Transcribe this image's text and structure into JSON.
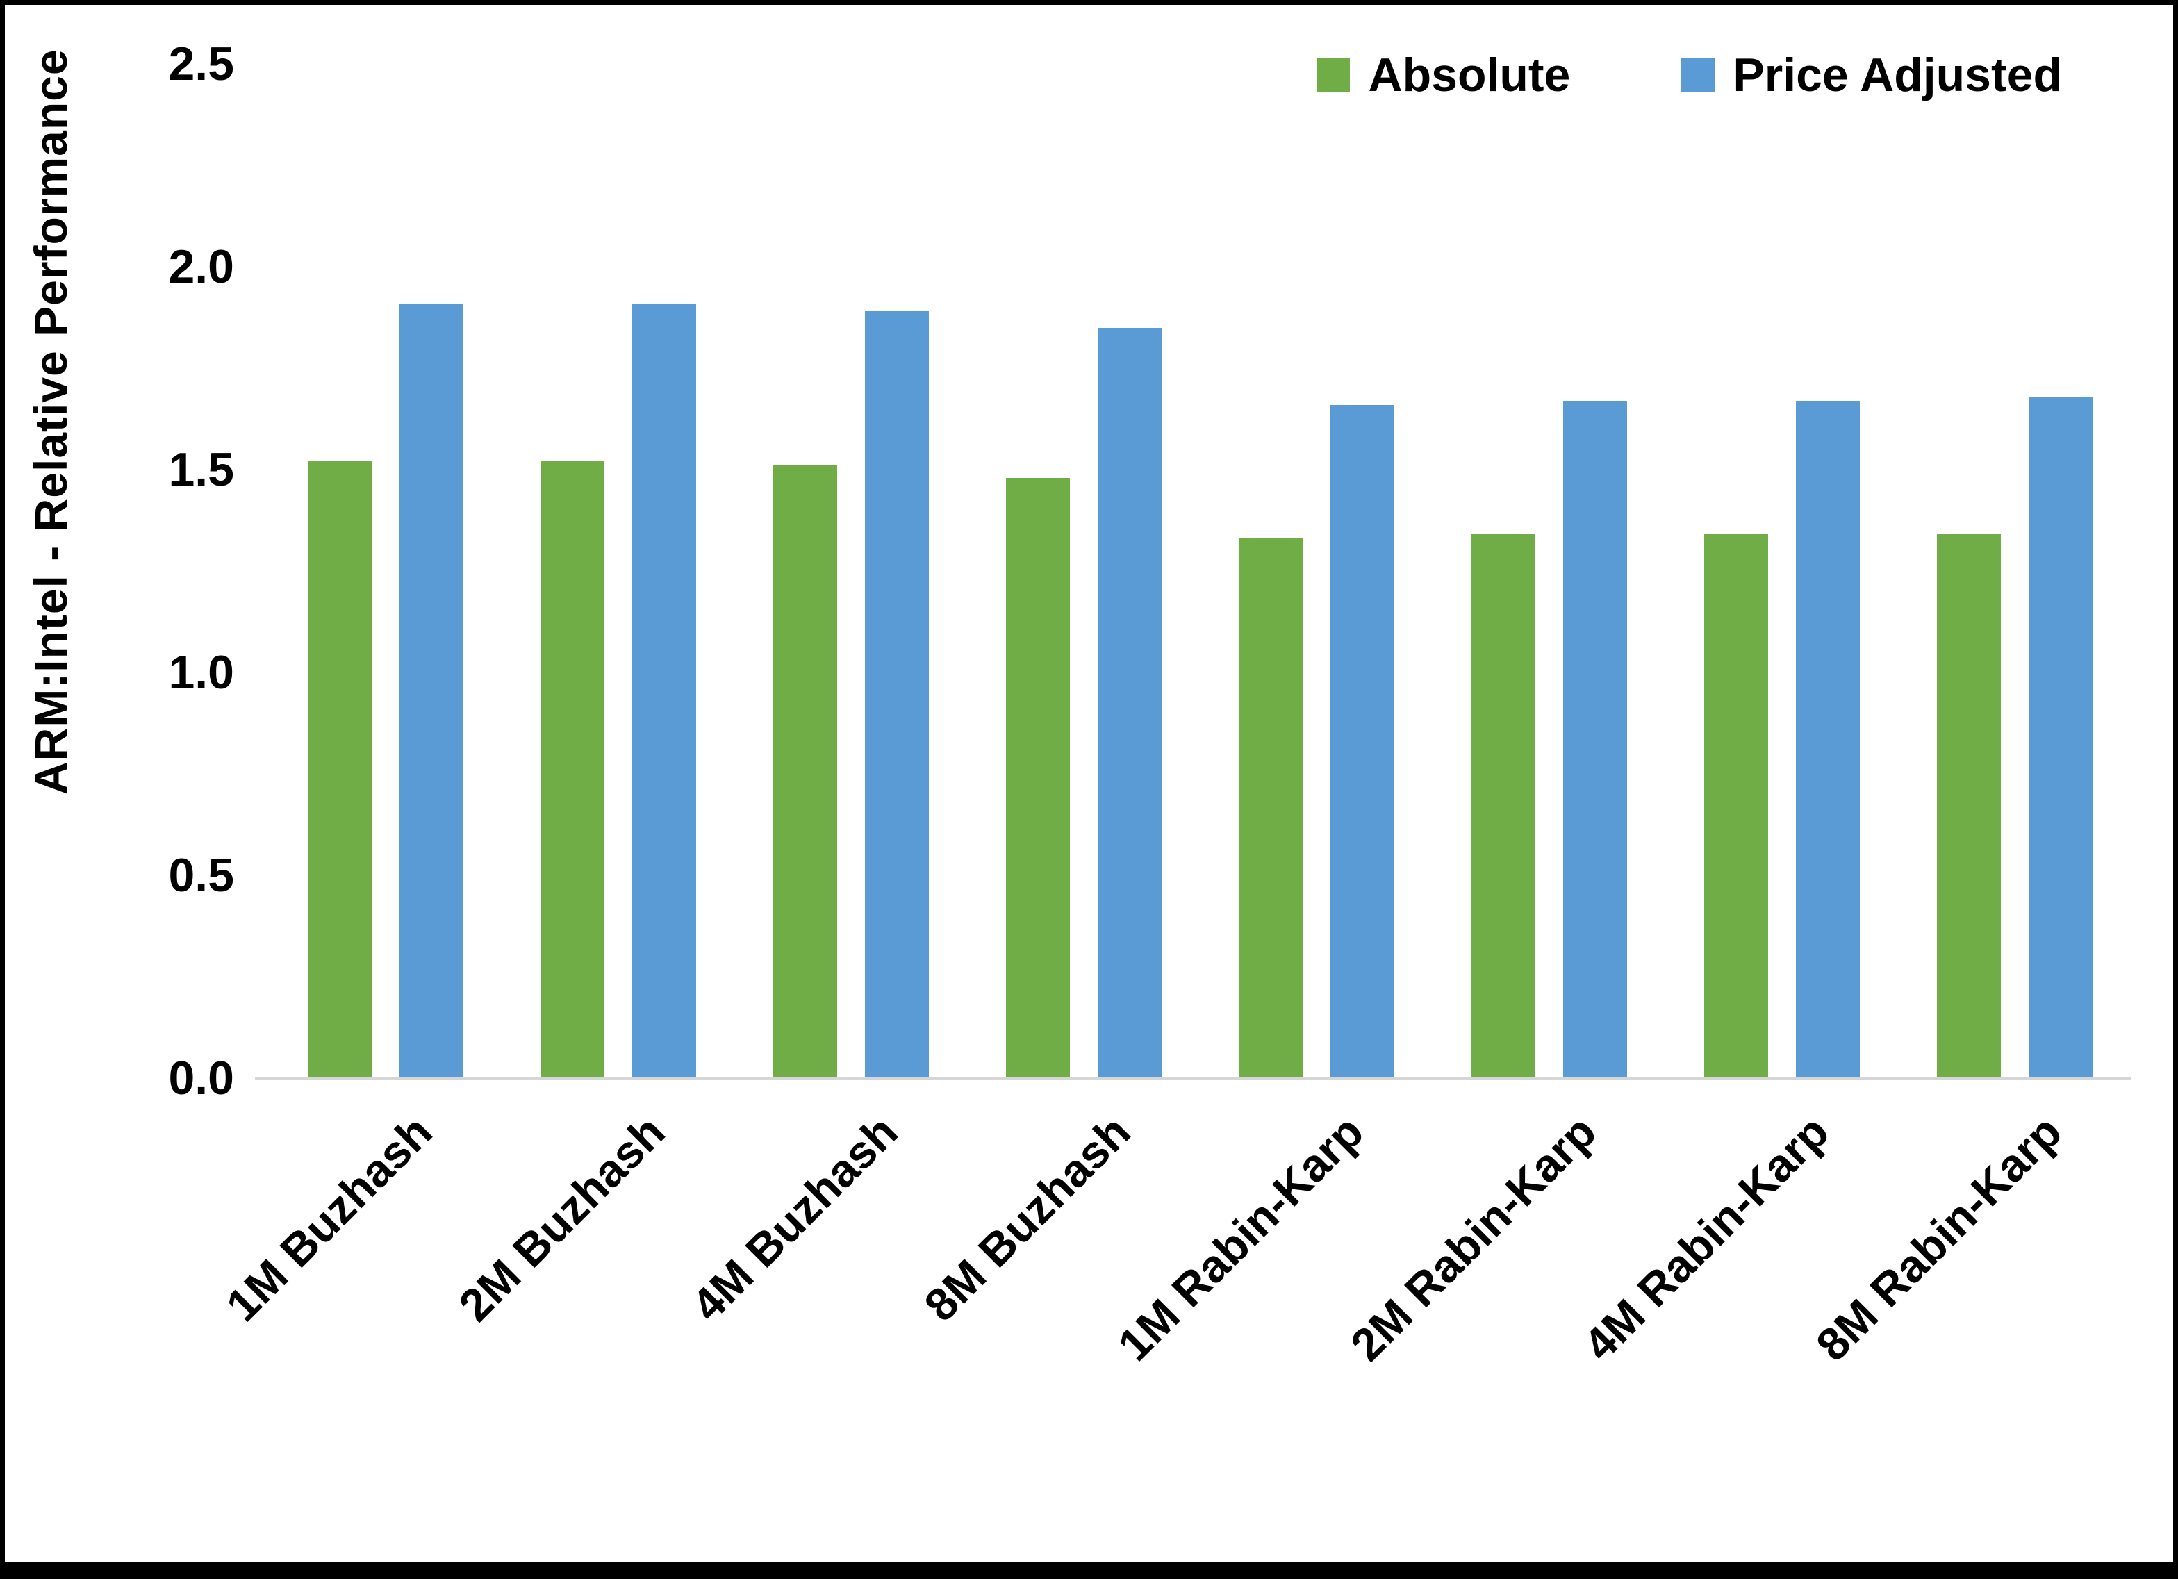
{
  "chart_data": {
    "type": "bar",
    "title": "",
    "xlabel": "",
    "ylabel": "ARM:Intel - Relative Performance",
    "ylim": [
      0,
      2.5
    ],
    "ytick_labels": [
      "0.0",
      "0.5",
      "1.0",
      "1.5",
      "2.0",
      "2.5"
    ],
    "grid": false,
    "legend_position": "top-right",
    "categories": [
      "1M Buzhash",
      "2M Buzhash",
      "4M Buzhash",
      "8M Buzhash",
      "1M Rabin-Karp",
      "2M Rabin-Karp",
      "4M Rabin-Karp",
      "8M Rabin-Karp"
    ],
    "series": [
      {
        "name": "Absolute",
        "color": "#70AD47",
        "values": [
          1.52,
          1.52,
          1.51,
          1.48,
          1.33,
          1.34,
          1.34,
          1.34
        ]
      },
      {
        "name": "Price Adjusted",
        "color": "#5B9BD5",
        "values": [
          1.91,
          1.91,
          1.89,
          1.85,
          1.66,
          1.67,
          1.67,
          1.68
        ]
      }
    ]
  }
}
